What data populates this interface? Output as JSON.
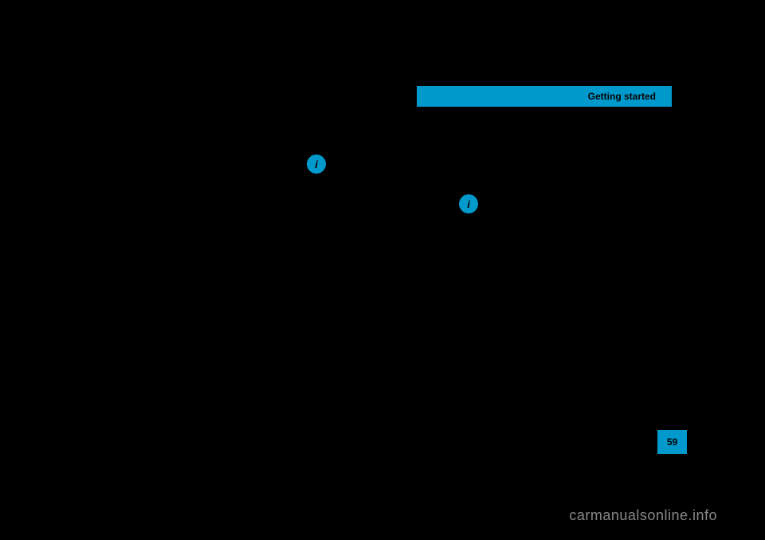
{
  "header": {
    "title": "Getting started",
    "background_color": "#0099cc"
  },
  "icons": {
    "info_symbol": "i"
  },
  "page": {
    "number": "59",
    "background_color": "#0099cc"
  },
  "watermark": {
    "text": "carmanualsonline.info"
  },
  "colors": {
    "background": "#000000",
    "accent": "#0099cc",
    "watermark_text": "#888888"
  }
}
